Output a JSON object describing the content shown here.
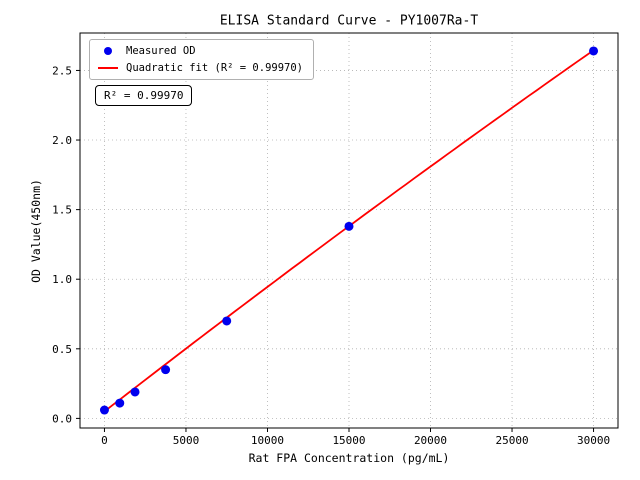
{
  "figure": {
    "title": "ELISA Standard Curve - PY1007Ra-T",
    "annotation_text": "R² = 0.99970"
  },
  "legend": {
    "measured_label": "Measured OD",
    "fit_label": "Quadratic fit (R² = 0.99970)"
  },
  "chart_data": {
    "type": "scatter",
    "title": "ELISA Standard Curve - PY1007Ra-T",
    "xlabel": "Rat FPA Concentration (pg/mL)",
    "ylabel": "OD Value(450nm)",
    "xlim": [
      -1500,
      31500
    ],
    "ylim": [
      -0.069,
      2.769
    ],
    "x_ticks": [
      0,
      5000,
      10000,
      15000,
      20000,
      25000,
      30000
    ],
    "y_ticks": [
      0.0,
      0.5,
      1.0,
      1.5,
      2.0,
      2.5
    ],
    "grid": true,
    "grid_style": "dotted",
    "legend_position": "upper left",
    "colors": {
      "points": "#0000ee",
      "fit_line": "#ff0000",
      "grid": "#b0b0b0",
      "spine": "#000000"
    },
    "series": [
      {
        "name": "Measured OD",
        "type": "scatter",
        "x": [
          0,
          938,
          1875,
          3750,
          7500,
          15000,
          30000
        ],
        "y": [
          0.06,
          0.11,
          0.19,
          0.35,
          0.7,
          1.38,
          2.64
        ]
      },
      {
        "name": "Quadratic fit (R² = 0.99970)",
        "type": "line",
        "fit_coeffs": {
          "a": -1.5e-10,
          "b": 9.1e-05,
          "c": 0.05
        },
        "x_range": [
          0,
          30000
        ],
        "r_squared": 0.9997
      }
    ],
    "annotation": {
      "text": "R² = 0.99970"
    }
  }
}
